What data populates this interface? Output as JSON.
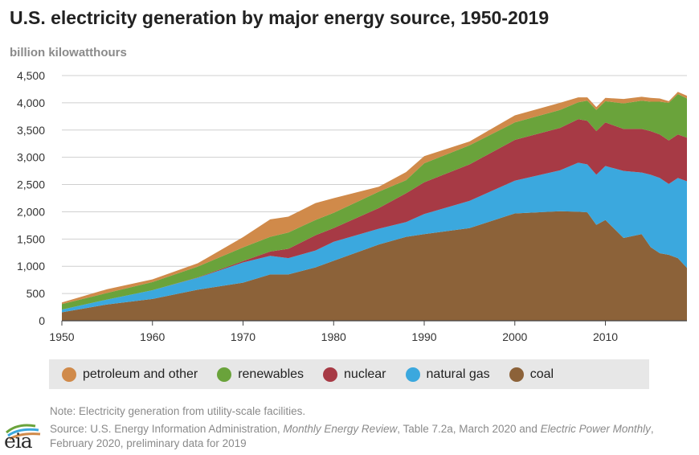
{
  "title": "U.S. electricity generation by major energy source, 1950-2019",
  "unit_label": "billion kilowatthours",
  "colors": {
    "petroleum": "#d08a4a",
    "renewables": "#6aa33b",
    "nuclear": "#a73a45",
    "natural_gas": "#3ba8de",
    "coal": "#8c6239",
    "grid": "#cfcfcf",
    "axis": "#444444"
  },
  "legend": [
    {
      "label": "petroleum and other",
      "color": "#d08a4a"
    },
    {
      "label": "renewables",
      "color": "#6aa33b"
    },
    {
      "label": "nuclear",
      "color": "#a73a45"
    },
    {
      "label": "natural gas",
      "color": "#3ba8de"
    },
    {
      "label": "coal",
      "color": "#8c6239"
    }
  ],
  "note": "Note: Electricity generation from utility-scale facilities.",
  "source": {
    "prefix": "Source: U.S. Energy Information Administration, ",
    "pub1": "Monthly Energy Review",
    "mid": ", Table 7.2a, March 2020 and ",
    "pub2": "Electric Power Monthly",
    "suffix": ", February 2020, preliminary data for 2019"
  },
  "logo": {
    "text": "eia"
  },
  "chart_data": {
    "type": "area",
    "stacked": true,
    "x": [
      1950,
      1955,
      1960,
      1965,
      1970,
      1973,
      1975,
      1978,
      1980,
      1985,
      1988,
      1990,
      1995,
      2000,
      2005,
      2007,
      2008,
      2009,
      2010,
      2012,
      2014,
      2015,
      2016,
      2017,
      2018,
      2019
    ],
    "series": [
      {
        "name": "coal",
        "values": [
          155,
          300,
          400,
          570,
          700,
          850,
          850,
          980,
          1100,
          1400,
          1540,
          1590,
          1700,
          1970,
          2010,
          2000,
          1990,
          1760,
          1850,
          1520,
          1590,
          1350,
          1240,
          1210,
          1150,
          970
        ]
      },
      {
        "name": "natural gas",
        "values": [
          50,
          90,
          160,
          220,
          370,
          340,
          300,
          310,
          350,
          290,
          270,
          370,
          500,
          600,
          750,
          900,
          880,
          920,
          990,
          1230,
          1130,
          1330,
          1380,
          1300,
          1470,
          1590
        ]
      },
      {
        "name": "nuclear",
        "values": [
          0,
          0,
          0,
          5,
          25,
          80,
          170,
          280,
          250,
          380,
          530,
          580,
          670,
          750,
          780,
          800,
          800,
          800,
          800,
          770,
          800,
          800,
          800,
          800,
          800,
          800
        ]
      },
      {
        "name": "renewables",
        "values": [
          100,
          120,
          150,
          200,
          250,
          270,
          300,
          280,
          280,
          300,
          240,
          350,
          350,
          320,
          330,
          310,
          370,
          390,
          390,
          470,
          520,
          540,
          600,
          690,
          740,
          720
        ]
      },
      {
        "name": "petroleum and other",
        "values": [
          30,
          70,
          50,
          60,
          190,
          320,
          290,
          310,
          270,
          90,
          150,
          130,
          70,
          130,
          130,
          90,
          60,
          50,
          60,
          80,
          70,
          70,
          60,
          30,
          40,
          50
        ]
      }
    ],
    "xlim": [
      1950,
      2019
    ],
    "ylim": [
      0,
      4500
    ],
    "x_ticks": [
      1950,
      1960,
      1970,
      1980,
      1990,
      2000,
      2010
    ],
    "y_ticks": [
      0,
      500,
      1000,
      1500,
      2000,
      2500,
      3000,
      3500,
      4000,
      4500
    ],
    "y_tick_labels": [
      "0",
      "500",
      "1,000",
      "1,500",
      "2,000",
      "2,500",
      "3,000",
      "3,500",
      "4,000",
      "4,500"
    ],
    "grid": true,
    "legend_position": "bottom"
  }
}
